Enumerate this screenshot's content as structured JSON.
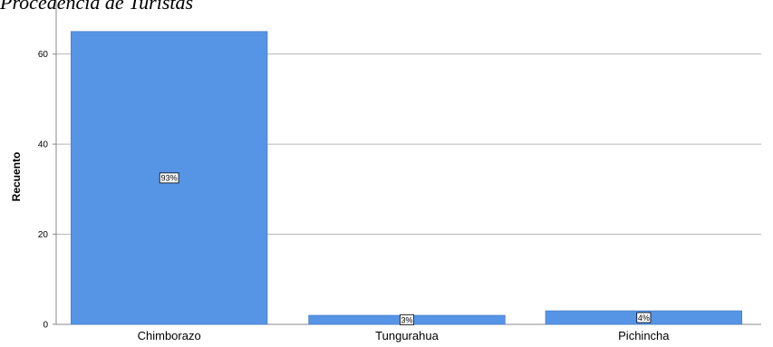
{
  "chart_data": {
    "type": "bar",
    "title": "Procedencia de Turistas",
    "xlabel": "",
    "ylabel": "Recuento",
    "ylim": [
      0,
      72
    ],
    "yticks": [
      0,
      20,
      40,
      60
    ],
    "grid": true,
    "categories": [
      "Chimborazo",
      "Tungurahua",
      "Pichincha"
    ],
    "values": [
      65,
      2,
      3
    ],
    "data_labels": [
      "93%",
      "3%",
      "4%"
    ],
    "colors": {
      "bar": "#5694e6",
      "bar_edge": "#4a7fc9",
      "grid": "#b8b8b8",
      "axis": "#888888",
      "label_box": "#ffffff",
      "label_border": "#000000"
    }
  }
}
